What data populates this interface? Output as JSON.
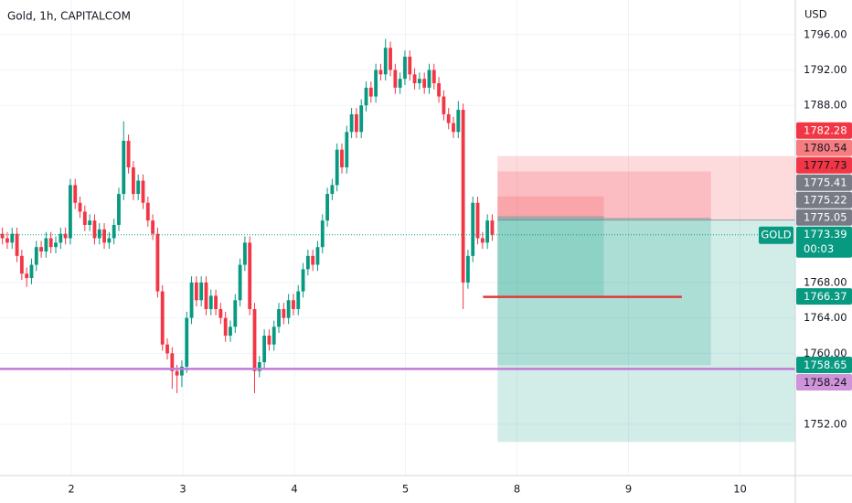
{
  "chart_data": {
    "type": "candlestick",
    "title": "Gold, 1h, CAPITALCOM",
    "currency": "USD",
    "up_color": "#089981",
    "down_color": "#f23645",
    "grid": true,
    "xlim": [
      0,
      164
    ],
    "ylim": [
      1746.2,
      1799.9
    ],
    "xticks": [
      {
        "value": 14.7,
        "label": "2"
      },
      {
        "value": 37.7,
        "label": "3"
      },
      {
        "value": 60.7,
        "label": "4"
      },
      {
        "value": 83.6,
        "label": "5"
      },
      {
        "value": 106.6,
        "label": "8"
      },
      {
        "value": 129.6,
        "label": "9"
      },
      {
        "value": 152.6,
        "label": "10"
      }
    ],
    "yticks": [
      {
        "value": 1752,
        "label": "1752.00"
      },
      {
        "value": 1760,
        "label": "1760.00"
      },
      {
        "value": 1764,
        "label": "1764.00"
      },
      {
        "value": 1768,
        "label": "1768.00"
      },
      {
        "value": 1788,
        "label": "1788.00"
      },
      {
        "value": 1792,
        "label": "1792.00"
      },
      {
        "value": 1796,
        "label": "1796.00"
      }
    ],
    "open": [
      1773.5,
      1773,
      1772.5,
      1773.5,
      1771,
      1769,
      1768.5,
      1770,
      1772,
      1771.5,
      1773,
      1772,
      1772.5,
      1773.5,
      1773,
      1779,
      1777,
      1776,
      1774.5,
      1775,
      1773,
      1774,
      1772.5,
      1773,
      1774.5,
      1778,
      1784,
      1781,
      1778,
      1779.5,
      1777,
      1775,
      1773.5,
      1767,
      1761,
      1760,
      1758,
      1757.5,
      1758.5,
      1764,
      1768,
      1766,
      1768,
      1765,
      1766.5,
      1765,
      1764,
      1762,
      1763,
      1766,
      1770,
      1772.5,
      1765,
      1758,
      1759,
      1762,
      1761,
      1763,
      1765,
      1764,
      1766,
      1765,
      1767,
      1769.5,
      1771,
      1770,
      1772,
      1775,
      1778,
      1779,
      1783,
      1781,
      1785,
      1787,
      1785,
      1788,
      1790,
      1789,
      1792,
      1791.5,
      1794.5,
      1792,
      1790,
      1791,
      1793.5,
      1791.5,
      1790.5,
      1791,
      1790,
      1792,
      1790.5,
      1789,
      1787,
      1786,
      1785,
      1787.5,
      1768,
      1771,
      1777,
      1773,
      1772.5,
      1775
    ],
    "high": [
      1774.2,
      1773.7,
      1774.2,
      1774.2,
      1771.7,
      1769.7,
      1770.7,
      1772.7,
      1772.7,
      1773.7,
      1773.7,
      1773.2,
      1774.2,
      1774.2,
      1779.7,
      1779.7,
      1777.7,
      1776.7,
      1775.7,
      1775.7,
      1774.7,
      1774.7,
      1773.7,
      1775.2,
      1778.7,
      1786.2,
      1784.7,
      1781.7,
      1780.2,
      1780.2,
      1777.7,
      1775.7,
      1774.2,
      1767.7,
      1761.7,
      1760.7,
      1758.7,
      1759.2,
      1764.7,
      1768.7,
      1768.7,
      1768.7,
      1768.7,
      1767.2,
      1767.2,
      1765.7,
      1764.7,
      1763.7,
      1766.7,
      1770.7,
      1773.2,
      1773.2,
      1765.7,
      1759.7,
      1762.7,
      1762.7,
      1763.7,
      1765.7,
      1765.7,
      1766.7,
      1766.7,
      1767.7,
      1770.2,
      1771.7,
      1771.7,
      1772.7,
      1775.7,
      1778.7,
      1779.7,
      1783.7,
      1783.7,
      1785.7,
      1787.7,
      1787.7,
      1788.7,
      1790.7,
      1790.7,
      1792.7,
      1792.7,
      1795.5,
      1795.2,
      1792.7,
      1791.7,
      1794.2,
      1794.2,
      1792.2,
      1791.7,
      1791.7,
      1792.7,
      1792.7,
      1791.2,
      1789.7,
      1787.7,
      1786.7,
      1788.5,
      1788.2,
      1771.7,
      1777.7,
      1777.7,
      1773.7,
      1775.7,
      1775.7
    ],
    "low": [
      1772.3,
      1771.8,
      1771.8,
      1770.3,
      1768.3,
      1767.5,
      1767.8,
      1769.3,
      1770.8,
      1770.8,
      1771.3,
      1771.3,
      1771.8,
      1772.3,
      1772.3,
      1776.3,
      1775.3,
      1773.8,
      1773.8,
      1772.3,
      1772.3,
      1771.8,
      1771.8,
      1772.3,
      1773.8,
      1777.3,
      1780.3,
      1777.3,
      1777.3,
      1776.3,
      1774.3,
      1772.8,
      1766.3,
      1760.3,
      1759.3,
      1756,
      1755.5,
      1756.2,
      1757.8,
      1763.3,
      1765.3,
      1765.3,
      1764.3,
      1764.3,
      1764.3,
      1763.3,
      1761.3,
      1761.3,
      1762.3,
      1765.3,
      1769.3,
      1764.3,
      1755.5,
      1757.3,
      1758.3,
      1760.3,
      1760.3,
      1762.3,
      1763.3,
      1763.3,
      1764.3,
      1764.3,
      1766.3,
      1768.8,
      1769.3,
      1769.3,
      1771.3,
      1774.3,
      1777.3,
      1778.3,
      1780.3,
      1780.3,
      1784.3,
      1784.3,
      1784.3,
      1787.3,
      1788.3,
      1788.3,
      1790.8,
      1790.8,
      1791.3,
      1789.3,
      1789.3,
      1790.3,
      1790.8,
      1789.8,
      1789.8,
      1789.3,
      1789.3,
      1789.8,
      1788.3,
      1786.3,
      1785.3,
      1784.3,
      1784.3,
      1765,
      1767.3,
      1770.3,
      1772.3,
      1771.8,
      1771.8,
      1772.7
    ],
    "close": [
      1773,
      1772.5,
      1773.5,
      1771,
      1769,
      1768.5,
      1770,
      1772,
      1771.5,
      1773,
      1772,
      1772.5,
      1773.5,
      1773,
      1779,
      1777,
      1776,
      1774.5,
      1775,
      1773,
      1774,
      1772.5,
      1773,
      1774.5,
      1778,
      1784,
      1781,
      1778,
      1779.5,
      1777,
      1775,
      1773.5,
      1767,
      1761,
      1760,
      1758,
      1757.5,
      1758.5,
      1764,
      1768,
      1766,
      1768,
      1765,
      1766.5,
      1765,
      1764,
      1762,
      1763,
      1766,
      1770,
      1772.5,
      1765,
      1758,
      1759,
      1762,
      1761,
      1763,
      1765,
      1764,
      1766,
      1765,
      1767,
      1769.5,
      1771,
      1770,
      1772,
      1775,
      1778,
      1779,
      1783,
      1781,
      1785,
      1787,
      1785,
      1788,
      1790,
      1789,
      1792,
      1791.5,
      1794.5,
      1792,
      1790,
      1791,
      1793.5,
      1791.5,
      1790.5,
      1791,
      1790,
      1792,
      1790.5,
      1789,
      1787,
      1786,
      1785,
      1787.5,
      1768,
      1771,
      1777,
      1773,
      1772.5,
      1775,
      1773.39
    ],
    "positions": [
      {
        "stop": 1782.28,
        "entry": 1775.05,
        "target": 1750,
        "x_start": 102.6,
        "x_end": 164
      },
      {
        "stop": 1780.54,
        "entry": 1775.22,
        "target": 1758.65,
        "x_start": 102.6,
        "x_end": 146.6
      },
      {
        "stop": 1777.73,
        "entry": 1775.41,
        "target": 1766.37,
        "x_start": 102.6,
        "x_end": 124.5
      }
    ],
    "stop_color": "#f23645",
    "target_color": "#089981",
    "segments": [
      {
        "value": 1766.37,
        "x_start": 99.6,
        "x_end": 140.6,
        "color": "#e03a3a"
      }
    ],
    "horizontal_lines": [
      {
        "value": 1758.24,
        "color": "#c27ad6"
      }
    ],
    "current_price": {
      "symbol": "GOLD",
      "value": 1773.39,
      "countdown": "00:03",
      "color": "#089981"
    },
    "price_labels": [
      {
        "value": 1782.28,
        "color": "#f23645",
        "text_color": "#ffffff"
      },
      {
        "value": 1780.54,
        "color": "#f77c80",
        "text_color": "#131722"
      },
      {
        "value": 1777.73,
        "color": "#f23645",
        "text_color": "#131722"
      },
      {
        "value": 1775.41,
        "color": "#787b86",
        "text_color": "#ffffff"
      },
      {
        "value": 1775.22,
        "color": "#787b86",
        "text_color": "#ffffff"
      },
      {
        "value": 1775.05,
        "color": "#787b86",
        "text_color": "#ffffff"
      },
      {
        "value": 1766.37,
        "color": "#089981",
        "text_color": "#ffffff"
      },
      {
        "value": 1758.65,
        "color": "#089981",
        "text_color": "#ffffff"
      },
      {
        "value": 1758.24,
        "color": "#ce93d8",
        "text_color": "#131722"
      }
    ]
  }
}
